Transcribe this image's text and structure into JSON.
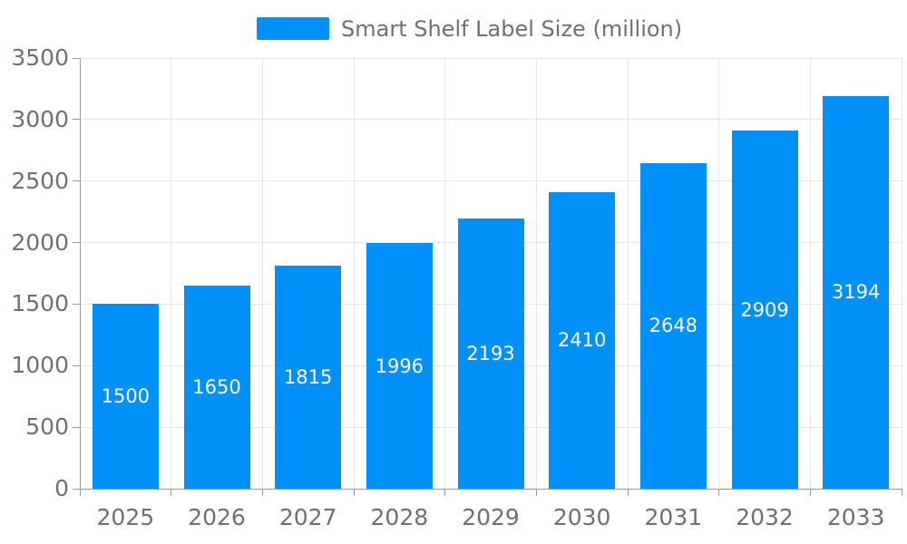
{
  "page": {
    "background": "#ffffff"
  },
  "chart_data": {
    "type": "bar",
    "title": "",
    "legend": {
      "label": "Smart Shelf Label Size (million)",
      "position": "top"
    },
    "categories": [
      "2025",
      "2026",
      "2027",
      "2028",
      "2029",
      "2030",
      "2031",
      "2032",
      "2033"
    ],
    "series": [
      {
        "name": "Smart Shelf Label Size (million)",
        "values": [
          1500,
          1650,
          1815,
          1996,
          2193,
          2410,
          2648,
          2909,
          3194
        ]
      }
    ],
    "data_labels": [
      "1500",
      "1650",
      "1815",
      "1996",
      "2193",
      "2410",
      "2648",
      "2909",
      "3194"
    ],
    "xlabel": "",
    "ylabel": "",
    "ylim": [
      0,
      3500
    ],
    "ytick_step": 500,
    "ytick_labels": [
      "0",
      "500",
      "1000",
      "1500",
      "2000",
      "2500",
      "3000",
      "3500"
    ],
    "grid": true,
    "colors": {
      "bar": "#0190F8",
      "axis_label": "#6E7079",
      "legend_text": "#6E7079",
      "grid_line": "#E6E6E6",
      "axis_line": "#999999",
      "data_label": "#FFFFFF"
    }
  }
}
